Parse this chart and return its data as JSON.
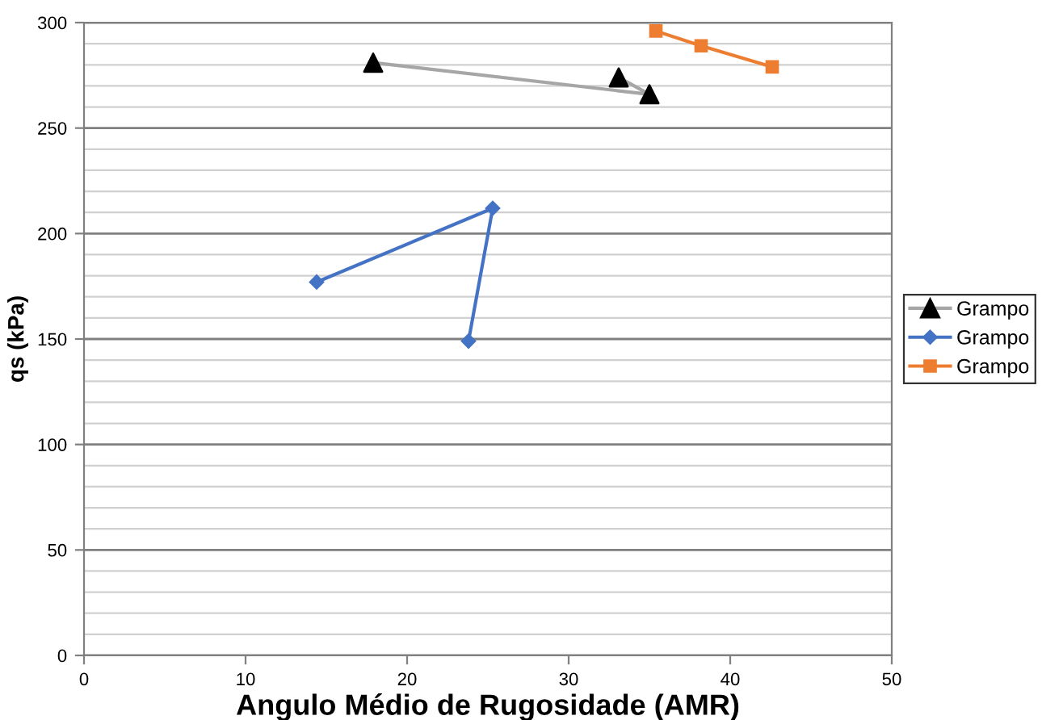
{
  "chart_data": {
    "type": "line",
    "xlabel": "Angulo Médio de Rugosidade (AMR)",
    "ylabel": "qs (kPa)",
    "series": [
      {
        "name": "Grampo",
        "color": "#a6a6a6",
        "marker": "triangle",
        "colors": [
          "#000000",
          "#000000",
          "#000000"
        ],
        "x": [
          17.9,
          35.0,
          33.1
        ],
        "values": [
          281,
          266,
          274
        ]
      },
      {
        "name": "Grampo",
        "color": "#4472c4",
        "marker": "diamond",
        "x": [
          14.4,
          25.3,
          23.8
        ],
        "values": [
          177,
          212,
          149
        ]
      },
      {
        "name": "Grampo",
        "color": "#ed7d31",
        "marker": "square",
        "x": [
          35.4,
          38.2,
          42.6
        ],
        "values": [
          296,
          289,
          279
        ]
      }
    ],
    "xlim": [
      0,
      50
    ],
    "xticks": [
      0,
      10,
      20,
      30,
      40,
      50
    ],
    "ylim": [
      0,
      300
    ],
    "yticks": [
      0,
      {
        "value": 10,
        "label": null
      },
      {
        "value": 20,
        "label": null
      },
      {
        "value": 30,
        "label": null
      },
      {
        "value": 40,
        "label": null
      },
      50,
      {
        "value": 60,
        "label": null
      },
      {
        "value": 70,
        "label": null
      },
      {
        "value": 80,
        "label": null
      },
      {
        "value": 90,
        "label": null
      },
      100,
      {
        "value": 110,
        "label": null
      },
      {
        "value": 120,
        "label": null
      },
      {
        "value": 130,
        "label": null
      },
      {
        "value": 140,
        "label": null
      },
      150,
      {
        "value": 160,
        "label": null
      },
      {
        "value": 170,
        "label": null
      },
      {
        "value": 180,
        "label": null
      },
      {
        "value": 190,
        "label": null
      },
      200,
      {
        "value": 210,
        "label": null
      },
      {
        "value": 220,
        "label": null
      },
      {
        "value": 230,
        "label": null
      },
      {
        "value": 240,
        "label": null
      },
      250,
      {
        "value": 260,
        "label": null
      },
      {
        "value": 270,
        "label": null
      },
      {
        "value": 280,
        "label": null
      },
      {
        "value": 290,
        "label": null
      },
      300
    ],
    "grid": "y",
    "legend": "right",
    "line_style": "solid"
  }
}
